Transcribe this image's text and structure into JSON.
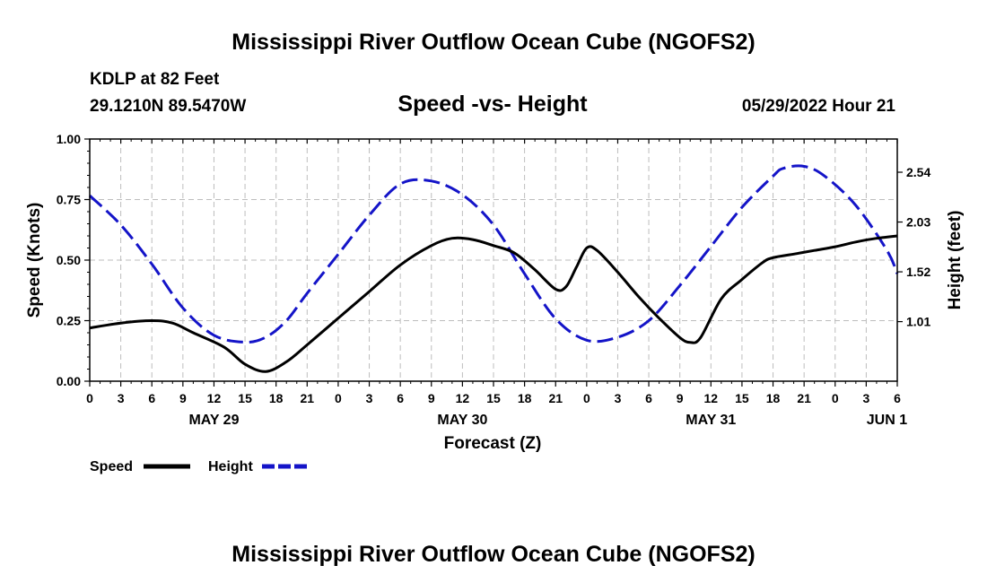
{
  "chart_data": {
    "type": "line",
    "title": "Mississippi River Outflow Ocean Cube (NGOFS2)",
    "footer_title": "Mississippi River Outflow Ocean Cube (NGOFS2)",
    "station": "KDLP at 82 Feet",
    "location": "29.1210N  89.5470W",
    "plot_title": "Speed -vs- Height",
    "timestamp": "05/29/2022 Hour 21",
    "xlabel": "Forecast (Z)",
    "ylabel_left": "Speed (Knots)",
    "ylabel_right": "Height (feet)",
    "xlim": [
      0,
      78
    ],
    "ylim_left": [
      0,
      1
    ],
    "ylim_right": [
      0.4,
      2.88
    ],
    "x_ticks": [
      {
        "x": 0,
        "label": "0"
      },
      {
        "x": 3,
        "label": "3"
      },
      {
        "x": 6,
        "label": "6"
      },
      {
        "x": 9,
        "label": "9"
      },
      {
        "x": 12,
        "label": "12"
      },
      {
        "x": 15,
        "label": "15"
      },
      {
        "x": 18,
        "label": "18"
      },
      {
        "x": 21,
        "label": "21"
      },
      {
        "x": 24,
        "label": "0"
      },
      {
        "x": 27,
        "label": "3"
      },
      {
        "x": 30,
        "label": "6"
      },
      {
        "x": 33,
        "label": "9"
      },
      {
        "x": 36,
        "label": "12"
      },
      {
        "x": 39,
        "label": "15"
      },
      {
        "x": 42,
        "label": "18"
      },
      {
        "x": 45,
        "label": "21"
      },
      {
        "x": 48,
        "label": "0"
      },
      {
        "x": 51,
        "label": "3"
      },
      {
        "x": 54,
        "label": "6"
      },
      {
        "x": 57,
        "label": "9"
      },
      {
        "x": 60,
        "label": "12"
      },
      {
        "x": 63,
        "label": "15"
      },
      {
        "x": 66,
        "label": "18"
      },
      {
        "x": 69,
        "label": "21"
      },
      {
        "x": 72,
        "label": "0"
      },
      {
        "x": 75,
        "label": "3"
      },
      {
        "x": 78,
        "label": "6"
      }
    ],
    "date_labels": [
      {
        "x": 12,
        "label": "MAY 29"
      },
      {
        "x": 36,
        "label": "MAY 30"
      },
      {
        "x": 60,
        "label": "MAY 31"
      },
      {
        "x": 77,
        "label": "JUN 1"
      }
    ],
    "y_ticks_left": [
      {
        "v": 0,
        "label": "0.00"
      },
      {
        "v": 0.25,
        "label": "0.25"
      },
      {
        "v": 0.5,
        "label": "0.50"
      },
      {
        "v": 0.75,
        "label": "0.75"
      },
      {
        "v": 1,
        "label": "1.00"
      }
    ],
    "y_ticks_right": [
      {
        "v": 1.01,
        "label": "1.01"
      },
      {
        "v": 1.52,
        "label": "1.52"
      },
      {
        "v": 2.03,
        "label": "2.03"
      },
      {
        "v": 2.54,
        "label": "2.54"
      }
    ],
    "series": [
      {
        "name": "Speed",
        "axis": "left",
        "color": "#000000",
        "style": "solid",
        "x": [
          0,
          3,
          6,
          8,
          10,
          13,
          15,
          17,
          19,
          21,
          24,
          27,
          30,
          33,
          35,
          37,
          39,
          41,
          43,
          45,
          46,
          47,
          48,
          49,
          51,
          53,
          55,
          57,
          58,
          59,
          61,
          63,
          65,
          66,
          68,
          70,
          72,
          74,
          76,
          78
        ],
        "values": [
          0.22,
          0.24,
          0.25,
          0.24,
          0.2,
          0.14,
          0.07,
          0.04,
          0.08,
          0.15,
          0.26,
          0.37,
          0.48,
          0.56,
          0.59,
          0.585,
          0.56,
          0.53,
          0.46,
          0.38,
          0.39,
          0.47,
          0.55,
          0.54,
          0.45,
          0.35,
          0.26,
          0.18,
          0.16,
          0.18,
          0.34,
          0.42,
          0.49,
          0.51,
          0.525,
          0.54,
          0.555,
          0.575,
          0.59,
          0.6
        ]
      },
      {
        "name": "Height",
        "axis": "right",
        "color": "#1414c8",
        "style": "dashed",
        "x": [
          0,
          3,
          6,
          9,
          12,
          15,
          17,
          19,
          21,
          24,
          27,
          30,
          33,
          36,
          39,
          42,
          45,
          48,
          51,
          54,
          57,
          60,
          63,
          66,
          67,
          69,
          71,
          74,
          77,
          78
        ],
        "values": [
          2.3,
          2.0,
          1.6,
          1.15,
          0.87,
          0.8,
          0.85,
          1.02,
          1.3,
          1.7,
          2.1,
          2.42,
          2.45,
          2.31,
          2.0,
          1.5,
          1.04,
          0.82,
          0.85,
          1.02,
          1.38,
          1.78,
          2.18,
          2.5,
          2.58,
          2.6,
          2.5,
          2.2,
          1.74,
          1.5
        ]
      }
    ],
    "legend": [
      {
        "name": "Speed",
        "color": "#000000",
        "style": "solid"
      },
      {
        "name": "Height",
        "color": "#1414c8",
        "style": "dashed"
      }
    ]
  }
}
